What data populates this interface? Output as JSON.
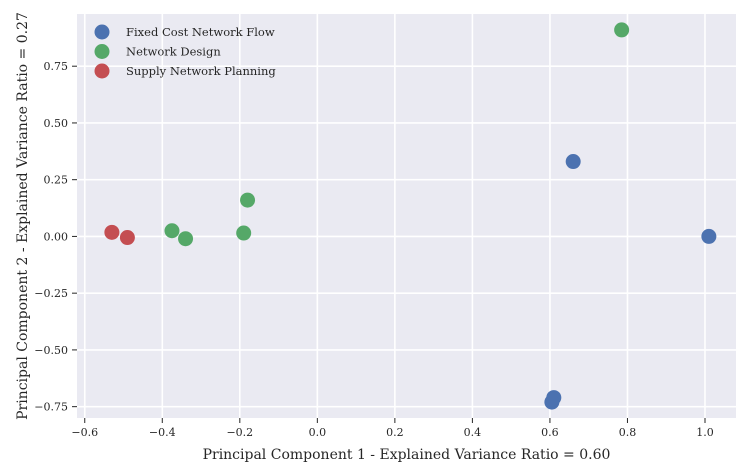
{
  "chart_data": {
    "type": "scatter",
    "title": "",
    "xlabel": "Principal Component 1 - Explained Variance Ratio = 0.60",
    "ylabel": "Principal Component 2 - Explained Variance Ratio = 0.27",
    "xlim": [
      -0.62,
      1.08
    ],
    "ylim": [
      -0.8,
      0.98
    ],
    "xticks": [
      -0.6,
      -0.4,
      -0.2,
      0.0,
      0.2,
      0.4,
      0.6,
      0.8,
      1.0
    ],
    "xtick_labels": [
      "−0.6",
      "−0.4",
      "−0.2",
      "0.0",
      "0.2",
      "0.4",
      "0.6",
      "0.8",
      "1.0"
    ],
    "yticks": [
      -0.75,
      -0.5,
      -0.25,
      0.0,
      0.25,
      0.5,
      0.75
    ],
    "ytick_labels": [
      "−0.75",
      "−0.50",
      "−0.25",
      "0.00",
      "0.25",
      "0.50",
      "0.75"
    ],
    "grid": true,
    "legend_position": "top-left",
    "background_color": "#eaeaf2",
    "series": [
      {
        "name": "Fixed Cost Network Flow",
        "color": "#4c72b0",
        "points": [
          {
            "x": 0.66,
            "y": 0.33
          },
          {
            "x": 1.01,
            "y": 0.0
          },
          {
            "x": 0.61,
            "y": -0.71
          },
          {
            "x": 0.605,
            "y": -0.73
          }
        ]
      },
      {
        "name": "Network Design",
        "color": "#55a868",
        "points": [
          {
            "x": 0.785,
            "y": 0.91
          },
          {
            "x": -0.18,
            "y": 0.16
          },
          {
            "x": -0.19,
            "y": 0.015
          },
          {
            "x": -0.375,
            "y": 0.025
          },
          {
            "x": -0.34,
            "y": -0.01
          }
        ]
      },
      {
        "name": "Supply Network Planning",
        "color": "#c44e52",
        "points": [
          {
            "x": -0.53,
            "y": 0.018
          },
          {
            "x": -0.49,
            "y": -0.005
          }
        ]
      }
    ]
  }
}
